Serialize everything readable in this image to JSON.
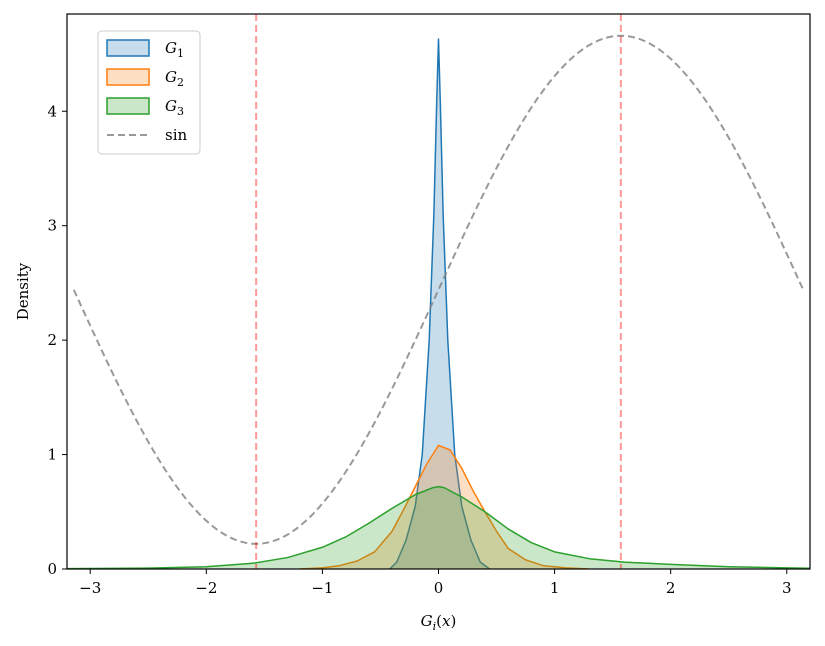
{
  "chart_data": {
    "type": "area",
    "title": "",
    "xlabel": "G_i(x)",
    "ylabel": "Density",
    "xlim": [
      -3.2,
      3.2
    ],
    "ylim": [
      0,
      4.85
    ],
    "xticks": [
      -3,
      -2,
      -1,
      0,
      1,
      2,
      3
    ],
    "yticks": [
      0,
      1,
      2,
      3,
      4
    ],
    "grid": false,
    "legend_position": "top-left",
    "series": [
      {
        "name": "G_1",
        "legend_base": "G",
        "legend_sub": "1",
        "kind": "kde",
        "color": "#1f77b4",
        "fill_alpha": 0.25,
        "points": [
          [
            -0.42,
            0
          ],
          [
            -0.36,
            0.06
          ],
          [
            -0.28,
            0.25
          ],
          [
            -0.2,
            0.55
          ],
          [
            -0.14,
            1.0
          ],
          [
            -0.08,
            2.0
          ],
          [
            -0.04,
            3.1
          ],
          [
            -0.015,
            4.1
          ],
          [
            0,
            4.63
          ],
          [
            0.015,
            4.1
          ],
          [
            0.04,
            3.1
          ],
          [
            0.08,
            2.0
          ],
          [
            0.14,
            1.0
          ],
          [
            0.2,
            0.55
          ],
          [
            0.28,
            0.25
          ],
          [
            0.36,
            0.06
          ],
          [
            0.44,
            0
          ]
        ]
      },
      {
        "name": "G_2",
        "legend_base": "G",
        "legend_sub": "2",
        "kind": "kde",
        "color": "#ff7f0e",
        "fill_alpha": 0.25,
        "points": [
          [
            -1.2,
            0
          ],
          [
            -1.0,
            0.01
          ],
          [
            -0.85,
            0.03
          ],
          [
            -0.7,
            0.07
          ],
          [
            -0.55,
            0.15
          ],
          [
            -0.4,
            0.33
          ],
          [
            -0.3,
            0.52
          ],
          [
            -0.2,
            0.72
          ],
          [
            -0.1,
            0.92
          ],
          [
            0,
            1.08
          ],
          [
            0.1,
            1.04
          ],
          [
            0.2,
            0.88
          ],
          [
            0.3,
            0.68
          ],
          [
            0.4,
            0.5
          ],
          [
            0.5,
            0.33
          ],
          [
            0.6,
            0.18
          ],
          [
            0.75,
            0.08
          ],
          [
            0.9,
            0.03
          ],
          [
            1.1,
            0.01
          ],
          [
            1.3,
            0
          ]
        ]
      },
      {
        "name": "G_3",
        "legend_base": "G",
        "legend_sub": "3",
        "kind": "kde",
        "color": "#2ca02c",
        "fill_alpha": 0.25,
        "points": [
          [
            -3.2,
            0.003
          ],
          [
            -2.5,
            0.008
          ],
          [
            -2.0,
            0.02
          ],
          [
            -1.6,
            0.05
          ],
          [
            -1.3,
            0.1
          ],
          [
            -1.0,
            0.19
          ],
          [
            -0.8,
            0.28
          ],
          [
            -0.6,
            0.4
          ],
          [
            -0.4,
            0.53
          ],
          [
            -0.2,
            0.65
          ],
          [
            -0.05,
            0.71
          ],
          [
            0,
            0.72
          ],
          [
            0.05,
            0.71
          ],
          [
            0.2,
            0.63
          ],
          [
            0.4,
            0.5
          ],
          [
            0.6,
            0.35
          ],
          [
            0.8,
            0.23
          ],
          [
            1.0,
            0.15
          ],
          [
            1.3,
            0.09
          ],
          [
            1.6,
            0.06
          ],
          [
            2.0,
            0.04
          ],
          [
            2.5,
            0.02
          ],
          [
            3.0,
            0.01
          ],
          [
            3.2,
            0.006
          ]
        ]
      },
      {
        "name": "sin",
        "legend_label": "sin",
        "kind": "sine",
        "color": "#7f7f7f",
        "alpha": 0.8,
        "dashed": true,
        "x_range": [
          -3.1416,
          3.1416
        ],
        "offset": 2.44,
        "amplitude": 2.22
      }
    ],
    "vlines": [
      {
        "x": -1.5708,
        "color": "#ff0000",
        "alpha": 0.4
      },
      {
        "x": 1.5708,
        "color": "#ff0000",
        "alpha": 0.4
      }
    ]
  }
}
